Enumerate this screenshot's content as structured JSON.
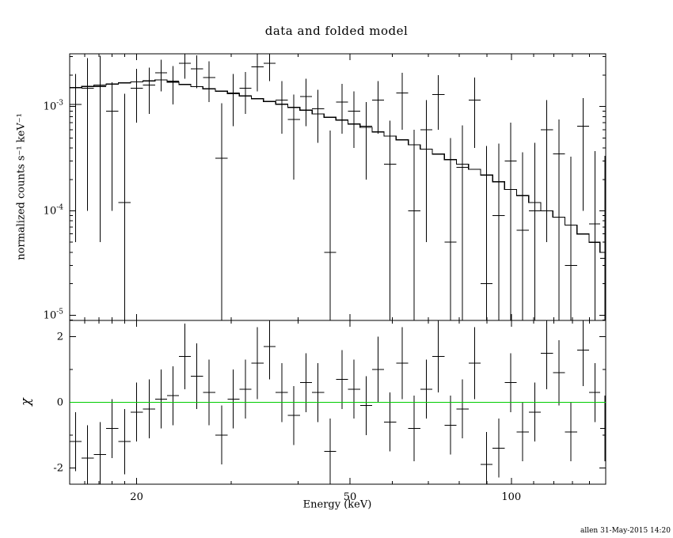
{
  "page": {
    "window_title": "data and folded model",
    "signature": "allen 31-May-2015 14:20"
  },
  "chart_data": {
    "type": "scatter",
    "subtype": "xspec-spectrum-with-folded-model-and-residuals",
    "title": "data and folded model",
    "xlabel": "Energy (keV)",
    "xscale": "log",
    "xlim": [
      15,
      150
    ],
    "xticks_major": [
      20,
      50,
      100
    ],
    "xticks_minor": [
      16,
      17,
      18,
      19,
      30,
      40,
      60,
      70,
      80,
      90,
      110,
      120,
      130,
      140
    ],
    "annotation": "allen 31-May-2015 14:20",
    "legend": "none",
    "grid": false,
    "colors": {
      "data": "#000000",
      "model": "#000000",
      "zero_line": "#00cc00",
      "background": "#ffffff"
    },
    "panels": [
      {
        "name": "spectrum",
        "ylabel": "normalized counts s⁻¹ keV⁻¹",
        "yscale": "log",
        "ylim": [
          8.9e-06,
          0.0032
        ],
        "yticks_major": [
          1e-05,
          0.0001,
          0.001
        ],
        "x": [
          15.4,
          16.2,
          17.1,
          18.0,
          19.0,
          20.0,
          21.1,
          22.2,
          23.4,
          24.6,
          25.9,
          27.3,
          28.8,
          30.3,
          31.9,
          33.6,
          35.4,
          37.3,
          39.3,
          41.4,
          43.6,
          45.9,
          48.3,
          50.9,
          53.6,
          56.4,
          59.4,
          62.6,
          65.9,
          69.4,
          73.1,
          77.0,
          81.1,
          85.4,
          89.9,
          94.7,
          99.7,
          105.0,
          110.6,
          116.5,
          122.7,
          129.2,
          136.1,
          143.3,
          149.5
        ],
        "model_y": [
          0.00152,
          0.00156,
          0.0016,
          0.00164,
          0.00168,
          0.00172,
          0.00176,
          0.0018,
          0.00171,
          0.00163,
          0.00155,
          0.00148,
          0.0014,
          0.00133,
          0.00126,
          0.00119,
          0.00112,
          0.00105,
          0.00098,
          0.00092,
          0.00085,
          0.00079,
          0.00074,
          0.00068,
          0.00063,
          0.00057,
          0.00052,
          0.00048,
          0.00043,
          0.00039,
          0.00035,
          0.00031,
          0.00028,
          0.00025,
          0.00022,
          0.00019,
          0.00016,
          0.00014,
          0.00012,
          0.0001,
          8.7e-05,
          7.3e-05,
          6e-05,
          5e-05,
          4e-05
        ],
        "data_y": [
          0.00105,
          0.0015,
          0.00155,
          0.0009,
          0.00012,
          0.0015,
          0.0016,
          0.0021,
          0.00175,
          0.0026,
          0.0023,
          0.0019,
          0.00032,
          0.00135,
          0.0015,
          0.0024,
          0.0026,
          0.00115,
          0.00075,
          0.00125,
          0.00095,
          4e-05,
          0.0011,
          0.0009,
          0.00065,
          0.00115,
          0.00028,
          0.00135,
          0.0001,
          0.0006,
          0.0013,
          5e-05,
          0.00026,
          0.00115,
          2e-05,
          9e-05,
          0.0003,
          6.5e-05,
          0.0001,
          0.0006,
          0.00035,
          3e-05,
          0.00065,
          7.5e-05,
          3.5e-05
        ],
        "data_yerr": [
          0.001,
          0.0014,
          0.0015,
          0.0008,
          0.0012,
          0.0008,
          0.00075,
          0.0007,
          0.0007,
          0.00075,
          0.0008,
          0.0008,
          0.00075,
          0.0007,
          0.00065,
          0.001,
          0.00085,
          0.0006,
          0.00055,
          0.0006,
          0.0005,
          0.00055,
          0.00055,
          0.0005,
          0.00045,
          0.0006,
          0.00045,
          0.00075,
          0.0005,
          0.00055,
          0.0007,
          0.00045,
          0.0004,
          0.00075,
          0.0004,
          0.00035,
          0.0004,
          0.0003,
          0.00035,
          0.00055,
          0.0004,
          0.0003,
          0.00055,
          0.0003,
          0.0003
        ]
      },
      {
        "name": "residuals",
        "ylabel": "χ",
        "yscale": "linear",
        "ylim": [
          -2.5,
          2.5
        ],
        "yticks_major": [
          -2,
          0,
          2
        ],
        "yticks_minor": [
          -1,
          1
        ],
        "zero_line": {
          "y": 0,
          "color": "#00cc00"
        },
        "chi": [
          -1.2,
          -1.7,
          -1.6,
          -0.8,
          -1.2,
          -0.3,
          -0.2,
          0.1,
          0.2,
          1.4,
          0.8,
          0.3,
          -1.0,
          0.1,
          0.4,
          1.2,
          1.7,
          0.3,
          -0.4,
          0.6,
          0.3,
          -1.5,
          0.7,
          0.4,
          -0.1,
          1.0,
          -0.6,
          1.2,
          -0.8,
          0.4,
          1.4,
          -0.7,
          -0.2,
          1.2,
          -1.9,
          -1.4,
          0.6,
          -0.9,
          -0.3,
          1.5,
          0.9,
          -0.9,
          1.6,
          0.3,
          -0.8
        ],
        "chi_err": [
          0.9,
          1.0,
          1.0,
          0.9,
          1.0,
          0.9,
          0.9,
          0.9,
          0.9,
          1.0,
          1.0,
          1.0,
          0.9,
          0.9,
          0.9,
          1.1,
          1.0,
          0.9,
          0.9,
          0.9,
          0.9,
          1.0,
          0.9,
          0.9,
          0.9,
          1.0,
          0.9,
          1.1,
          1.0,
          0.9,
          1.1,
          0.9,
          0.9,
          1.1,
          1.0,
          0.9,
          0.9,
          0.9,
          0.9,
          1.1,
          1.0,
          0.9,
          1.1,
          0.9,
          1.0
        ]
      }
    ]
  }
}
